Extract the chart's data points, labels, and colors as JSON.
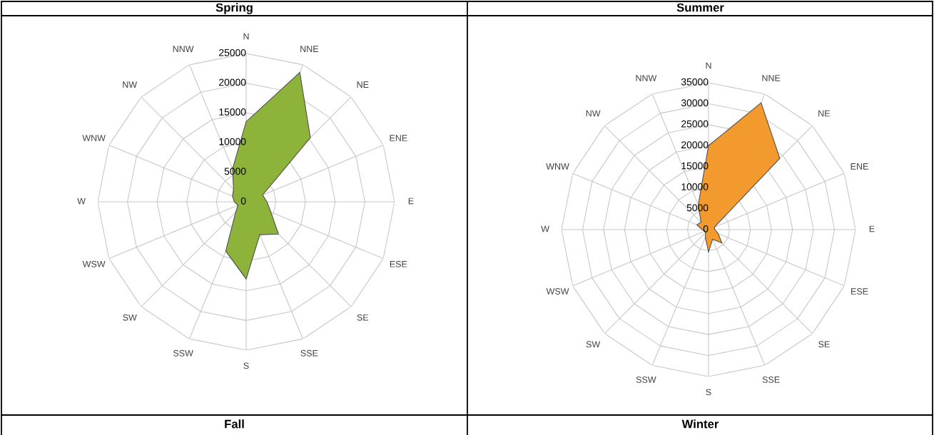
{
  "chart_data": [
    {
      "type": "radar",
      "title": "Spring",
      "categories": [
        "N",
        "NNE",
        "NE",
        "ENE",
        "E",
        "ESE",
        "SE",
        "SSE",
        "S",
        "SSW",
        "SW",
        "WSW",
        "W",
        "WNW",
        "NW",
        "NNW"
      ],
      "series": [
        {
          "color": "#8db33a",
          "values": [
            13500,
            23600,
            15300,
            3000,
            3500,
            4500,
            7700,
            6000,
            13000,
            9000,
            2500,
            1500,
            2000,
            2500,
            3000,
            6000
          ]
        }
      ],
      "ylim": [
        0,
        25000
      ],
      "yticks": [
        0,
        5000,
        10000,
        15000,
        20000,
        25000
      ],
      "grid": true,
      "annotations": [
        "Fall"
      ]
    },
    {
      "type": "radar",
      "title": "Summer",
      "categories": [
        "N",
        "NNE",
        "NE",
        "ENE",
        "E",
        "ESE",
        "SE",
        "SSE",
        "S",
        "SSW",
        "SW",
        "WSW",
        "W",
        "WNW",
        "NW",
        "NNW"
      ],
      "series": [
        {
          "color": "#f39a2e",
          "values": [
            20000,
            32700,
            24000,
            1500,
            1500,
            2500,
            4500,
            2500,
            5300,
            2000,
            1000,
            1000,
            1500,
            3000,
            2500,
            6400
          ]
        }
      ],
      "ylim": [
        0,
        35000
      ],
      "yticks": [
        0,
        5000,
        10000,
        15000,
        20000,
        25000,
        30000,
        35000
      ],
      "grid": true,
      "annotations": [
        "Winter"
      ]
    }
  ]
}
